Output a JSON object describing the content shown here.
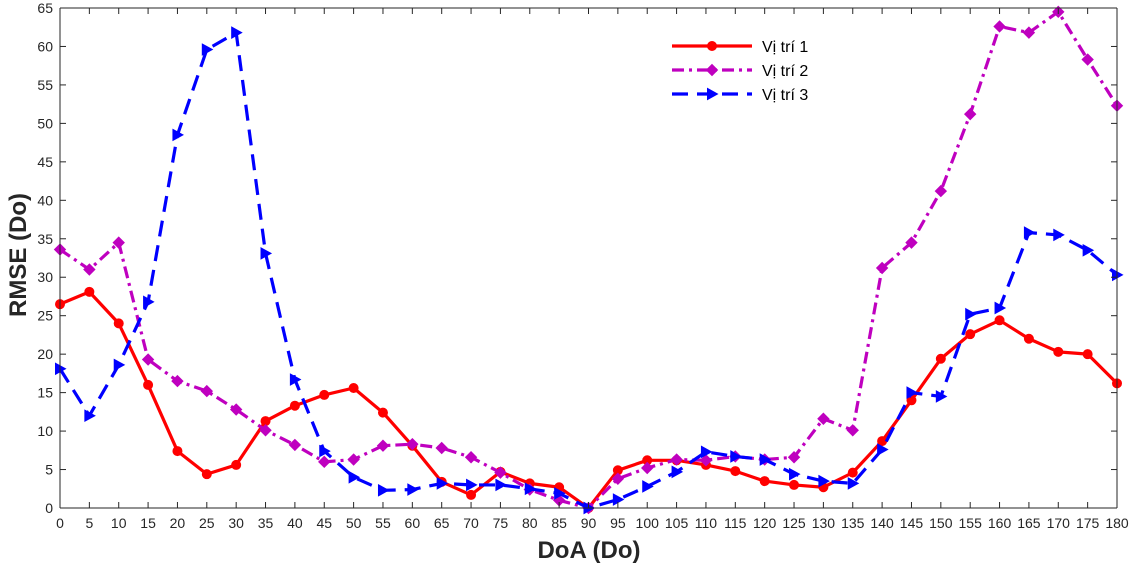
{
  "chart_data": {
    "type": "line",
    "xlabel": "DoA (Do)",
    "ylabel": "RMSE (Do)",
    "xlim": [
      0,
      180
    ],
    "ylim": [
      0,
      65
    ],
    "xticks": [
      0,
      5,
      10,
      15,
      20,
      25,
      30,
      35,
      40,
      45,
      50,
      55,
      60,
      65,
      70,
      75,
      80,
      85,
      90,
      95,
      100,
      105,
      110,
      115,
      120,
      125,
      130,
      135,
      140,
      145,
      150,
      155,
      160,
      165,
      170,
      175,
      180
    ],
    "yticks": [
      0,
      5,
      10,
      15,
      20,
      25,
      30,
      35,
      40,
      45,
      50,
      55,
      60,
      65
    ],
    "grid": false,
    "legend_position": "top-right",
    "x": [
      0,
      5,
      10,
      15,
      20,
      25,
      30,
      35,
      40,
      45,
      50,
      55,
      60,
      65,
      70,
      75,
      80,
      85,
      90,
      95,
      100,
      105,
      110,
      115,
      120,
      125,
      130,
      135,
      140,
      145,
      150,
      155,
      160,
      165,
      170,
      175,
      180
    ],
    "series": [
      {
        "name": "Vị trí 1",
        "color": "#ff0000",
        "line_style": "solid",
        "marker": "circle",
        "values": [
          26.5,
          28.1,
          24.0,
          16.0,
          7.4,
          4.4,
          5.6,
          11.3,
          13.3,
          14.7,
          15.6,
          12.4,
          8.1,
          3.4,
          1.7,
          4.7,
          3.2,
          2.7,
          0.0,
          4.9,
          6.2,
          6.2,
          5.6,
          4.8,
          3.5,
          3.0,
          2.7,
          4.6,
          8.7,
          14.0,
          19.4,
          22.6,
          24.4,
          22.0,
          20.3,
          20.0,
          16.2
        ]
      },
      {
        "name": "Vị trí 2",
        "color": "#bf00bf",
        "line_style": "dashdot",
        "marker": "diamond",
        "values": [
          33.6,
          31.0,
          34.5,
          19.3,
          16.5,
          15.2,
          12.8,
          10.1,
          8.2,
          6.0,
          6.3,
          8.1,
          8.3,
          7.8,
          6.6,
          4.6,
          2.4,
          1.0,
          0.0,
          3.8,
          5.2,
          6.3,
          6.2,
          6.7,
          6.3,
          6.6,
          11.6,
          10.1,
          31.2,
          34.5,
          41.2,
          51.2,
          62.6,
          61.8,
          64.5,
          58.3,
          52.3
        ]
      },
      {
        "name": "Vị trí 3",
        "color": "#0000ff",
        "line_style": "dashed",
        "marker": "triangle-right",
        "values": [
          18.1,
          12.0,
          18.6,
          26.8,
          48.5,
          59.6,
          61.8,
          33.1,
          16.7,
          7.4,
          4.0,
          2.3,
          2.4,
          3.2,
          3.0,
          3.0,
          2.5,
          1.9,
          0.0,
          1.1,
          2.8,
          4.7,
          7.3,
          6.7,
          6.3,
          4.4,
          3.5,
          3.2,
          7.6,
          15.0,
          14.5,
          25.2,
          26.0,
          35.8,
          35.5,
          33.5,
          30.3
        ]
      }
    ]
  }
}
